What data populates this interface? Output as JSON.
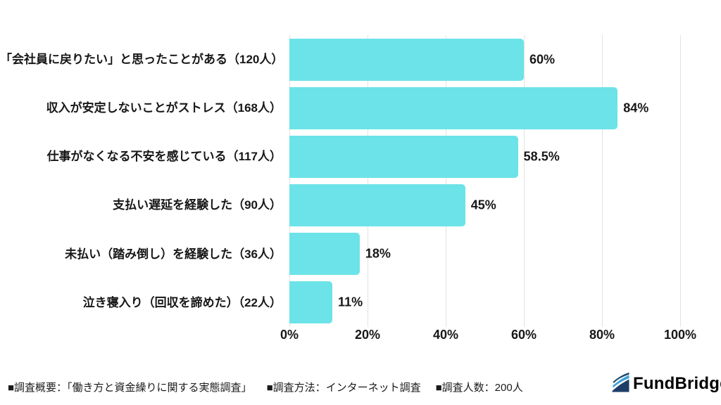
{
  "chart_data": {
    "type": "bar",
    "orientation": "horizontal",
    "categories": [
      "「会社員に戻りたい」と思ったことがある（120人）",
      "収入が安定しないことがストレス（168人）",
      "仕事がなくなる不安を感じている（117人）",
      "支払い遅延を経験した（90人）",
      "未払い（踏み倒し）を経験した（36人）",
      "泣き寝入り（回収を諦めた）（22人）"
    ],
    "values": [
      60,
      84,
      58.5,
      45,
      18,
      11
    ],
    "value_labels": [
      "60%",
      "84%",
      "58.5%",
      "45%",
      "18%",
      "11%"
    ],
    "respondent_counts": [
      120,
      168,
      117,
      90,
      36,
      22
    ],
    "x_ticks": [
      "0%",
      "20%",
      "40%",
      "60%",
      "80%",
      "100%"
    ],
    "xlim": [
      0,
      100
    ],
    "grid": true,
    "bar_color": "#6CE3E8",
    "gridline_color": "#e3e3e3",
    "text_color": "#171717"
  },
  "footer": {
    "survey_overview": "■調査概要：「働き方と資金繰りに関する実態調査」",
    "survey_method": "■調査方法：インターネット調査",
    "survey_size": "■調査人数：200人"
  },
  "logo": {
    "text_primary": "Fund",
    "text_secondary": "Bridge",
    "color_primary": "#1e3c64",
    "color_secondary": "#2eb3e8"
  }
}
